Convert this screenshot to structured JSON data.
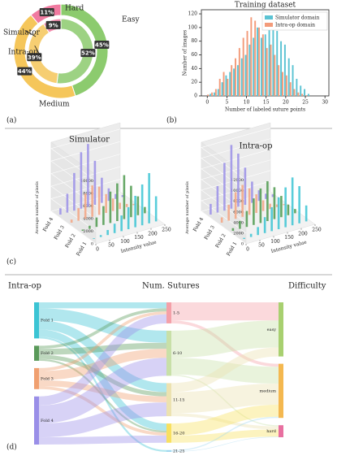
{
  "panel_labels": [
    "(a)",
    "(b)",
    "(c)",
    "(d)"
  ],
  "chart_data": [
    {
      "type": "pie",
      "categories": [
        "Easy",
        "Medium",
        "Hard"
      ],
      "colors": [
        "#8ccb6e",
        "#f5c65a",
        "#f07aa0"
      ],
      "series": [
        {
          "name": "Simulator",
          "values": [
            45,
            44,
            11
          ],
          "value_labels": [
            "45%",
            "44%",
            "11%"
          ]
        },
        {
          "name": "Intra-op",
          "values": [
            52,
            39,
            9
          ],
          "value_labels": [
            "52%",
            "39%",
            "9%"
          ]
        }
      ]
    },
    {
      "type": "bar",
      "title": "Training dataset",
      "x_label": "Number of labeled suture points",
      "y_label": "Number of images",
      "x": [
        0,
        1,
        2,
        3,
        4,
        5,
        6,
        7,
        8,
        9,
        10,
        11,
        12,
        13,
        14,
        15,
        16,
        17,
        18,
        19,
        20,
        21,
        22,
        23,
        24,
        25,
        26
      ],
      "series": [
        {
          "name": "Simulator domain",
          "color": "#5bc3d3",
          "values": [
            0,
            3,
            5,
            10,
            20,
            30,
            35,
            40,
            45,
            55,
            60,
            75,
            85,
            100,
            85,
            90,
            115,
            100,
            95,
            80,
            75,
            55,
            45,
            25,
            15,
            10,
            3
          ]
        },
        {
          "name": "Intra-op domain",
          "color": "#f39b7a",
          "values": [
            2,
            5,
            10,
            25,
            35,
            25,
            45,
            55,
            70,
            85,
            95,
            115,
            110,
            100,
            90,
            70,
            75,
            60,
            45,
            35,
            30,
            20,
            10,
            5,
            3,
            1,
            0
          ]
        }
      ],
      "xlim": [
        -1.5,
        31
      ],
      "xticks": [
        0,
        5,
        10,
        15,
        20,
        25,
        30
      ],
      "ylim": [
        0,
        126
      ],
      "yticks": [
        0,
        20,
        40,
        60,
        80,
        100,
        120
      ],
      "legend": "upper right"
    },
    {
      "type": "bar3d",
      "title": "Simulator",
      "x_label": "Intensity value",
      "z_label": "Average number of pixels",
      "x": [
        12.5,
        37.5,
        62.5,
        87.5,
        112.5,
        137.5,
        162.5,
        187.5,
        212.5,
        237.5
      ],
      "series": [
        {
          "name": "Fold 1",
          "color": "#3cc4d4",
          "values": [
            100,
            300,
            800,
            1500,
            2500,
            3500,
            5000,
            6500,
            8000,
            4000
          ]
        },
        {
          "name": "Fold 2",
          "color": "#4e9a4e",
          "values": [
            200,
            500,
            1500,
            3000,
            5000,
            6000,
            7000,
            5000,
            3000,
            1000
          ]
        },
        {
          "name": "Fold 3",
          "color": "#f3a483",
          "values": [
            500,
            2000,
            4000,
            5000,
            4500,
            3000,
            2000,
            1000,
            500,
            200
          ]
        },
        {
          "name": "Fold 4",
          "color": "#9a8fe8",
          "values": [
            1000,
            3000,
            6000,
            9000,
            10000,
            7000,
            4000,
            2000,
            800,
            300
          ]
        }
      ],
      "xlim": [
        0,
        250
      ],
      "xticks": [
        0,
        50,
        100,
        150,
        200,
        250
      ],
      "zlim": [
        0,
        11000
      ],
      "zticks": [
        0,
        2000,
        4000,
        6000,
        8000,
        10000
      ]
    },
    {
      "type": "bar3d",
      "title": "Intra-op",
      "x_label": "Intensity value",
      "z_label": "Average number of pixels",
      "x": [
        12.5,
        37.5,
        62.5,
        87.5,
        112.5,
        137.5,
        162.5,
        187.5,
        212.5,
        237.5
      ],
      "series": [
        {
          "name": "Fold 1",
          "color": "#3cc4d4",
          "values": [
            200,
            600,
            1500,
            3000,
            4500,
            6000,
            7500,
            9000,
            7000,
            3000
          ]
        },
        {
          "name": "Fold 2",
          "color": "#4e9a4e",
          "values": [
            500,
            1500,
            3000,
            5000,
            6500,
            7500,
            6000,
            4000,
            2000,
            800
          ]
        },
        {
          "name": "Fold 3",
          "color": "#f3a483",
          "values": [
            1000,
            3000,
            5000,
            6000,
            5000,
            3500,
            2000,
            1000,
            500,
            200
          ]
        },
        {
          "name": "Fold 4",
          "color": "#9a8fe8",
          "values": [
            2000,
            5000,
            9000,
            12000,
            10000,
            7000,
            4000,
            2000,
            1000,
            500
          ]
        }
      ],
      "xlim": [
        0,
        250
      ],
      "xticks": [
        0,
        50,
        100,
        150,
        200,
        250
      ],
      "zlim": [
        0,
        13000
      ],
      "zticks": [
        0,
        2000,
        4000,
        6000,
        8000,
        10000,
        12000
      ]
    },
    {
      "type": "sankey",
      "columns": [
        "Intra-op",
        "Num. Sutures",
        "Difficulty"
      ],
      "nodes": [
        {
          "name": "Fold 1",
          "column": 0,
          "color": "#3cc4d4"
        },
        {
          "name": "Fold 2",
          "column": 0,
          "color": "#5a9a5a"
        },
        {
          "name": "Fold 3",
          "column": 0,
          "color": "#f0a070"
        },
        {
          "name": "Fold 4",
          "column": 0,
          "color": "#9a8fe8"
        },
        {
          "name": "1-5",
          "column": 1,
          "color": "#f4a0a8"
        },
        {
          "name": "6-10",
          "column": 1,
          "color": "#c8e0a8"
        },
        {
          "name": "11-15",
          "column": 1,
          "color": "#ece2b0"
        },
        {
          "name": "16-20",
          "column": 1,
          "color": "#f8e060"
        },
        {
          "name": "21-25",
          "column": 1,
          "color": "#a0d8f0"
        },
        {
          "name": "easy",
          "column": 2,
          "color": "#a8d070"
        },
        {
          "name": "medium",
          "column": 2,
          "color": "#f4b850"
        },
        {
          "name": "hard",
          "column": 2,
          "color": "#e870a0"
        }
      ],
      "links": [
        {
          "source": 0,
          "target": 4,
          "value": 10
        },
        {
          "source": 0,
          "target": 5,
          "value": 20
        },
        {
          "source": 0,
          "target": 6,
          "value": 15
        },
        {
          "source": 0,
          "target": 7,
          "value": 12
        },
        {
          "source": 0,
          "target": 8,
          "value": 3
        },
        {
          "source": 1,
          "target": 4,
          "value": 5
        },
        {
          "source": 1,
          "target": 5,
          "value": 10
        },
        {
          "source": 1,
          "target": 6,
          "value": 7
        },
        {
          "source": 1,
          "target": 7,
          "value": 3
        },
        {
          "source": 2,
          "target": 4,
          "value": 5
        },
        {
          "source": 2,
          "target": 5,
          "value": 15
        },
        {
          "source": 2,
          "target": 6,
          "value": 10
        },
        {
          "source": 2,
          "target": 7,
          "value": 5
        },
        {
          "source": 3,
          "target": 4,
          "value": 15
        },
        {
          "source": 3,
          "target": 5,
          "value": 30
        },
        {
          "source": 3,
          "target": 6,
          "value": 23
        },
        {
          "source": 3,
          "target": 7,
          "value": 12
        },
        {
          "source": 4,
          "target": 9,
          "value": 30
        },
        {
          "source": 4,
          "target": 10,
          "value": 5
        },
        {
          "source": 5,
          "target": 9,
          "value": 45
        },
        {
          "source": 5,
          "target": 10,
          "value": 28
        },
        {
          "source": 5,
          "target": 11,
          "value": 2
        },
        {
          "source": 6,
          "target": 9,
          "value": 15
        },
        {
          "source": 6,
          "target": 10,
          "value": 35
        },
        {
          "source": 6,
          "target": 11,
          "value": 5
        },
        {
          "source": 7,
          "target": 10,
          "value": 20
        },
        {
          "source": 7,
          "target": 11,
          "value": 12
        },
        {
          "source": 8,
          "target": 10,
          "value": 2
        },
        {
          "source": 8,
          "target": 11,
          "value": 1
        }
      ]
    }
  ]
}
